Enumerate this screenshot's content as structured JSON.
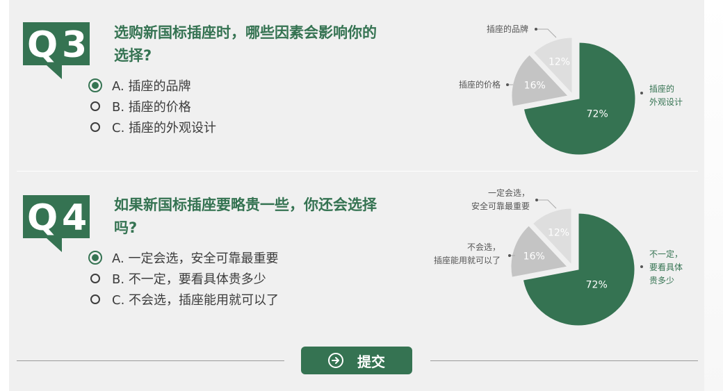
{
  "colors": {
    "accent": "#357352",
    "slice_mid": "#c4c4c4",
    "slice_light": "#dedede",
    "text": "#3c3c3c"
  },
  "questions": [
    {
      "badge": {
        "letter": "Q",
        "number": "3"
      },
      "title_lines": [
        "选购新国标插座时，哪些因素会影响你的",
        "选择?"
      ],
      "options": [
        {
          "label": "A. 插座的品牌",
          "selected": true
        },
        {
          "label": "B. 插座的价格",
          "selected": false
        },
        {
          "label": "C. 插座的外观设计",
          "selected": false
        }
      ],
      "chart_data": {
        "type": "pie",
        "slices": [
          {
            "label_lines": [
              "插座的",
              "外观设计"
            ],
            "value": 72,
            "display": "72%",
            "color": "#357352"
          },
          {
            "label_lines": [
              "插座的价格"
            ],
            "value": 16,
            "display": "16%",
            "color": "#c4c4c4"
          },
          {
            "label_lines": [
              "插座的品牌"
            ],
            "value": 12,
            "display": "12%",
            "color": "#dedede"
          }
        ]
      }
    },
    {
      "badge": {
        "letter": "Q",
        "number": "4"
      },
      "title_lines": [
        "如果新国标插座要略贵一些，你还会选择",
        "吗?"
      ],
      "options": [
        {
          "label": "A. 一定会选，安全可靠最重要",
          "selected": true
        },
        {
          "label": "B. 不一定，要看具体贵多少",
          "selected": false
        },
        {
          "label": "C. 不会选，插座能用就可以了",
          "selected": false
        }
      ],
      "chart_data": {
        "type": "pie",
        "slices": [
          {
            "label_lines": [
              "不一定，",
              "要看具体",
              "贵多少"
            ],
            "value": 72,
            "display": "72%",
            "color": "#357352"
          },
          {
            "label_lines": [
              "不会选，",
              "插座能用就可以了"
            ],
            "value": 16,
            "display": "16%",
            "color": "#c4c4c4"
          },
          {
            "label_lines": [
              "一定会选，",
              "安全可靠最重要"
            ],
            "value": 12,
            "display": "12%",
            "color": "#dedede"
          }
        ]
      }
    }
  ],
  "submit": {
    "label": "提交",
    "icon": "arrow-right-circle-icon"
  }
}
